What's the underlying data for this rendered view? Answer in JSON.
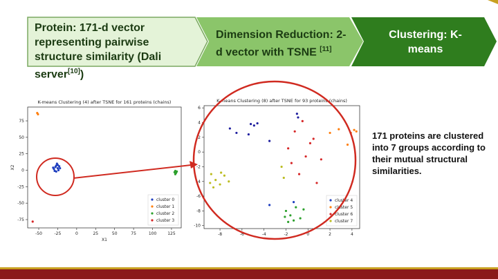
{
  "steps": [
    {
      "text": "Protein: 171-d vector representing pairwise structure similarity (Dali server",
      "ref": "[10]",
      "close": ")"
    },
    {
      "text": "Dimension Reduction: 2-d vector with TSNE",
      "ref": "[11]"
    },
    {
      "text": "Clustering: K-means"
    }
  ],
  "summary": "171 proteins are clustered into 7 groups according to their mutual structural similarities.",
  "chart_data": [
    {
      "type": "scatter",
      "title": "K-means Clustering (4) after TSNE for 161 proteins (chains)",
      "xlabel": "X1",
      "ylabel": "X2",
      "xlim": [
        -64.6,
        137.8
      ],
      "ylim": [
        -87.6,
        96
      ],
      "xticks": [
        -50,
        -25,
        0,
        25,
        50,
        75,
        100,
        125
      ],
      "yticks": [
        -75,
        -50,
        -25,
        0,
        25,
        50,
        75
      ],
      "legend": "lower right",
      "series": [
        {
          "name": "cluster 0",
          "color": "#1f3fbf",
          "x": [
            -28,
            -25,
            -30,
            -22,
            -27,
            -24,
            -31,
            -26,
            -23,
            -29,
            -25,
            -27
          ],
          "y": [
            5,
            8,
            2,
            3,
            -2,
            0,
            4,
            10,
            6,
            -1,
            3,
            7
          ]
        },
        {
          "name": "cluster 1",
          "color": "#ff7f0e",
          "x": [
            -52,
            -51
          ],
          "y": [
            87,
            85
          ]
        },
        {
          "name": "cluster 2",
          "color": "#2ca02c",
          "x": [
            130,
            131,
            129,
            130,
            132
          ],
          "y": [
            -1,
            -4,
            -3,
            -6,
            -2
          ]
        },
        {
          "name": "cluster 3",
          "color": "#d62728",
          "x": [
            -58
          ],
          "y": [
            -78
          ]
        }
      ]
    },
    {
      "type": "scatter",
      "title": "K-means Clustering (8) after TSNE for 93 proteins (chains)",
      "xlim": [
        -9.45,
        4.7
      ],
      "ylim": [
        -10.4,
        6.3
      ],
      "xticks": [
        -8,
        -6,
        -4,
        -2,
        0,
        2,
        4
      ],
      "yticks": [
        -10,
        -8,
        -6,
        -4,
        -2,
        0,
        2,
        4,
        6
      ],
      "legend": "lower right",
      "series": [
        {
          "color": "#1f1f9f",
          "x": [
            -7.1,
            -6.5,
            -5.2,
            -4.9,
            -4.6,
            -5.4,
            -3.5,
            -1.0,
            -0.9
          ],
          "y": [
            3.2,
            2.6,
            3.8,
            3.6,
            3.9,
            2.4,
            1.5,
            5.2,
            4.7
          ]
        },
        {
          "name": "cluster 4",
          "color": "#1f3fbf",
          "x": [
            -3.5,
            -1.3
          ],
          "y": [
            -7.2,
            -6.8
          ]
        },
        {
          "name": "cluster 5",
          "color": "#ff7f0e",
          "x": [
            2.8,
            3.9,
            4.2,
            4.4,
            3.6,
            2.0
          ],
          "y": [
            3.1,
            2.6,
            3.0,
            2.8,
            1.0,
            2.6
          ]
        },
        {
          "name": "cluster 6",
          "color": "#d62728",
          "x": [
            -0.5,
            -1.2,
            0.2,
            -1.8,
            0.5,
            -0.2,
            -1.5,
            1.2,
            0.8,
            -0.8
          ],
          "y": [
            4.2,
            2.8,
            1.2,
            0.5,
            1.8,
            -0.6,
            -1.5,
            -1.0,
            -4.2,
            -3.0
          ]
        },
        {
          "name": "cluster 7",
          "color": "#bcbd22",
          "x": [
            -8.8,
            -8.4,
            -8.0,
            -7.6,
            -8.6,
            -7.9,
            -8.9,
            -7.2,
            -2.4,
            -2.2
          ],
          "y": [
            -3.0,
            -3.8,
            -4.4,
            -3.2,
            -4.8,
            -2.8,
            -4.2,
            -4.0,
            -2.0,
            -3.5
          ]
        },
        {
          "color": "#2ca02c",
          "x": [
            -2.0,
            -1.6,
            -1.1,
            -0.7,
            -1.8,
            -0.4,
            -1.3,
            -2.1
          ],
          "y": [
            -8.0,
            -8.6,
            -7.5,
            -9.0,
            -9.5,
            -7.8,
            -9.3,
            -8.8
          ]
        }
      ]
    }
  ]
}
